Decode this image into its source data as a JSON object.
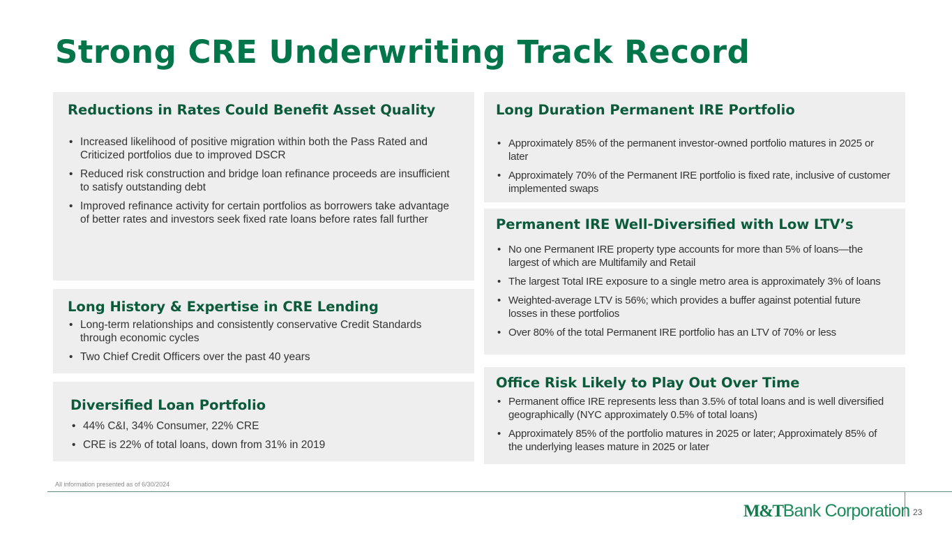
{
  "title": "Strong CRE Underwriting Track Record",
  "sections": [
    {
      "heading": "Reductions in Rates Could Benefit Asset Quality",
      "bullets": [
        "Increased likelihood of positive migration within both the Pass Rated and Criticized portfolios due to improved DSCR",
        "Reduced risk construction and bridge loan refinance proceeds are insufficient to satisfy outstanding debt",
        "Improved refinance activity for certain portfolios as borrowers take advantage of better rates and investors seek fixed rate loans before rates fall further"
      ]
    },
    {
      "heading": "Long History & Expertise in CRE Lending",
      "bullets": [
        "Long-term relationships and consistently conservative Credit Standards through economic cycles",
        "Two Chief Credit Officers over the past 40 years"
      ]
    },
    {
      "heading": "Diversified Loan Portfolio",
      "bullets": [
        "44% C&I, 34% Consumer, 22% CRE",
        "CRE is 22% of total loans, down from 31% in 2019"
      ]
    },
    {
      "heading": "Long Duration Permanent IRE Portfolio",
      "bullets": [
        "Approximately 85% of the permanent investor-owned portfolio matures in 2025 or later",
        "Approximately 70% of the Permanent IRE portfolio is fixed rate, inclusive of customer implemented swaps"
      ]
    },
    {
      "heading": "Permanent IRE Well-Diversified with Low LTV’s",
      "bullets": [
        "No one Permanent IRE property type accounts for more than 5% of loans—the largest of which are Multifamily and Retail",
        "The largest Total IRE exposure to a single metro area is approximately 3% of loans",
        "Weighted-average LTV is 56%; which provides a buffer against potential future losses in these portfolios",
        "Over 80% of the total Permanent IRE portfolio has an LTV of 70% or less"
      ]
    },
    {
      "heading": "Office Risk Likely to Play Out Over Time",
      "bullets": [
        "Permanent office IRE represents less than 3.5% of total loans and is well diversified geographically (NYC approximately 0.5% of total loans)",
        "Approximately 85% of the portfolio matures in 2025 or later; Approximately 85% of the underlying leases mature in 2025 or later"
      ]
    }
  ],
  "footnote": "All information presented as of 6/30/2024",
  "logo": {
    "mark": "M&T",
    "text": "Bank Corporation"
  },
  "page_number": "23",
  "colors": {
    "title": "#00764a",
    "heading": "#0b5a3a",
    "box": "#eeeeee"
  }
}
